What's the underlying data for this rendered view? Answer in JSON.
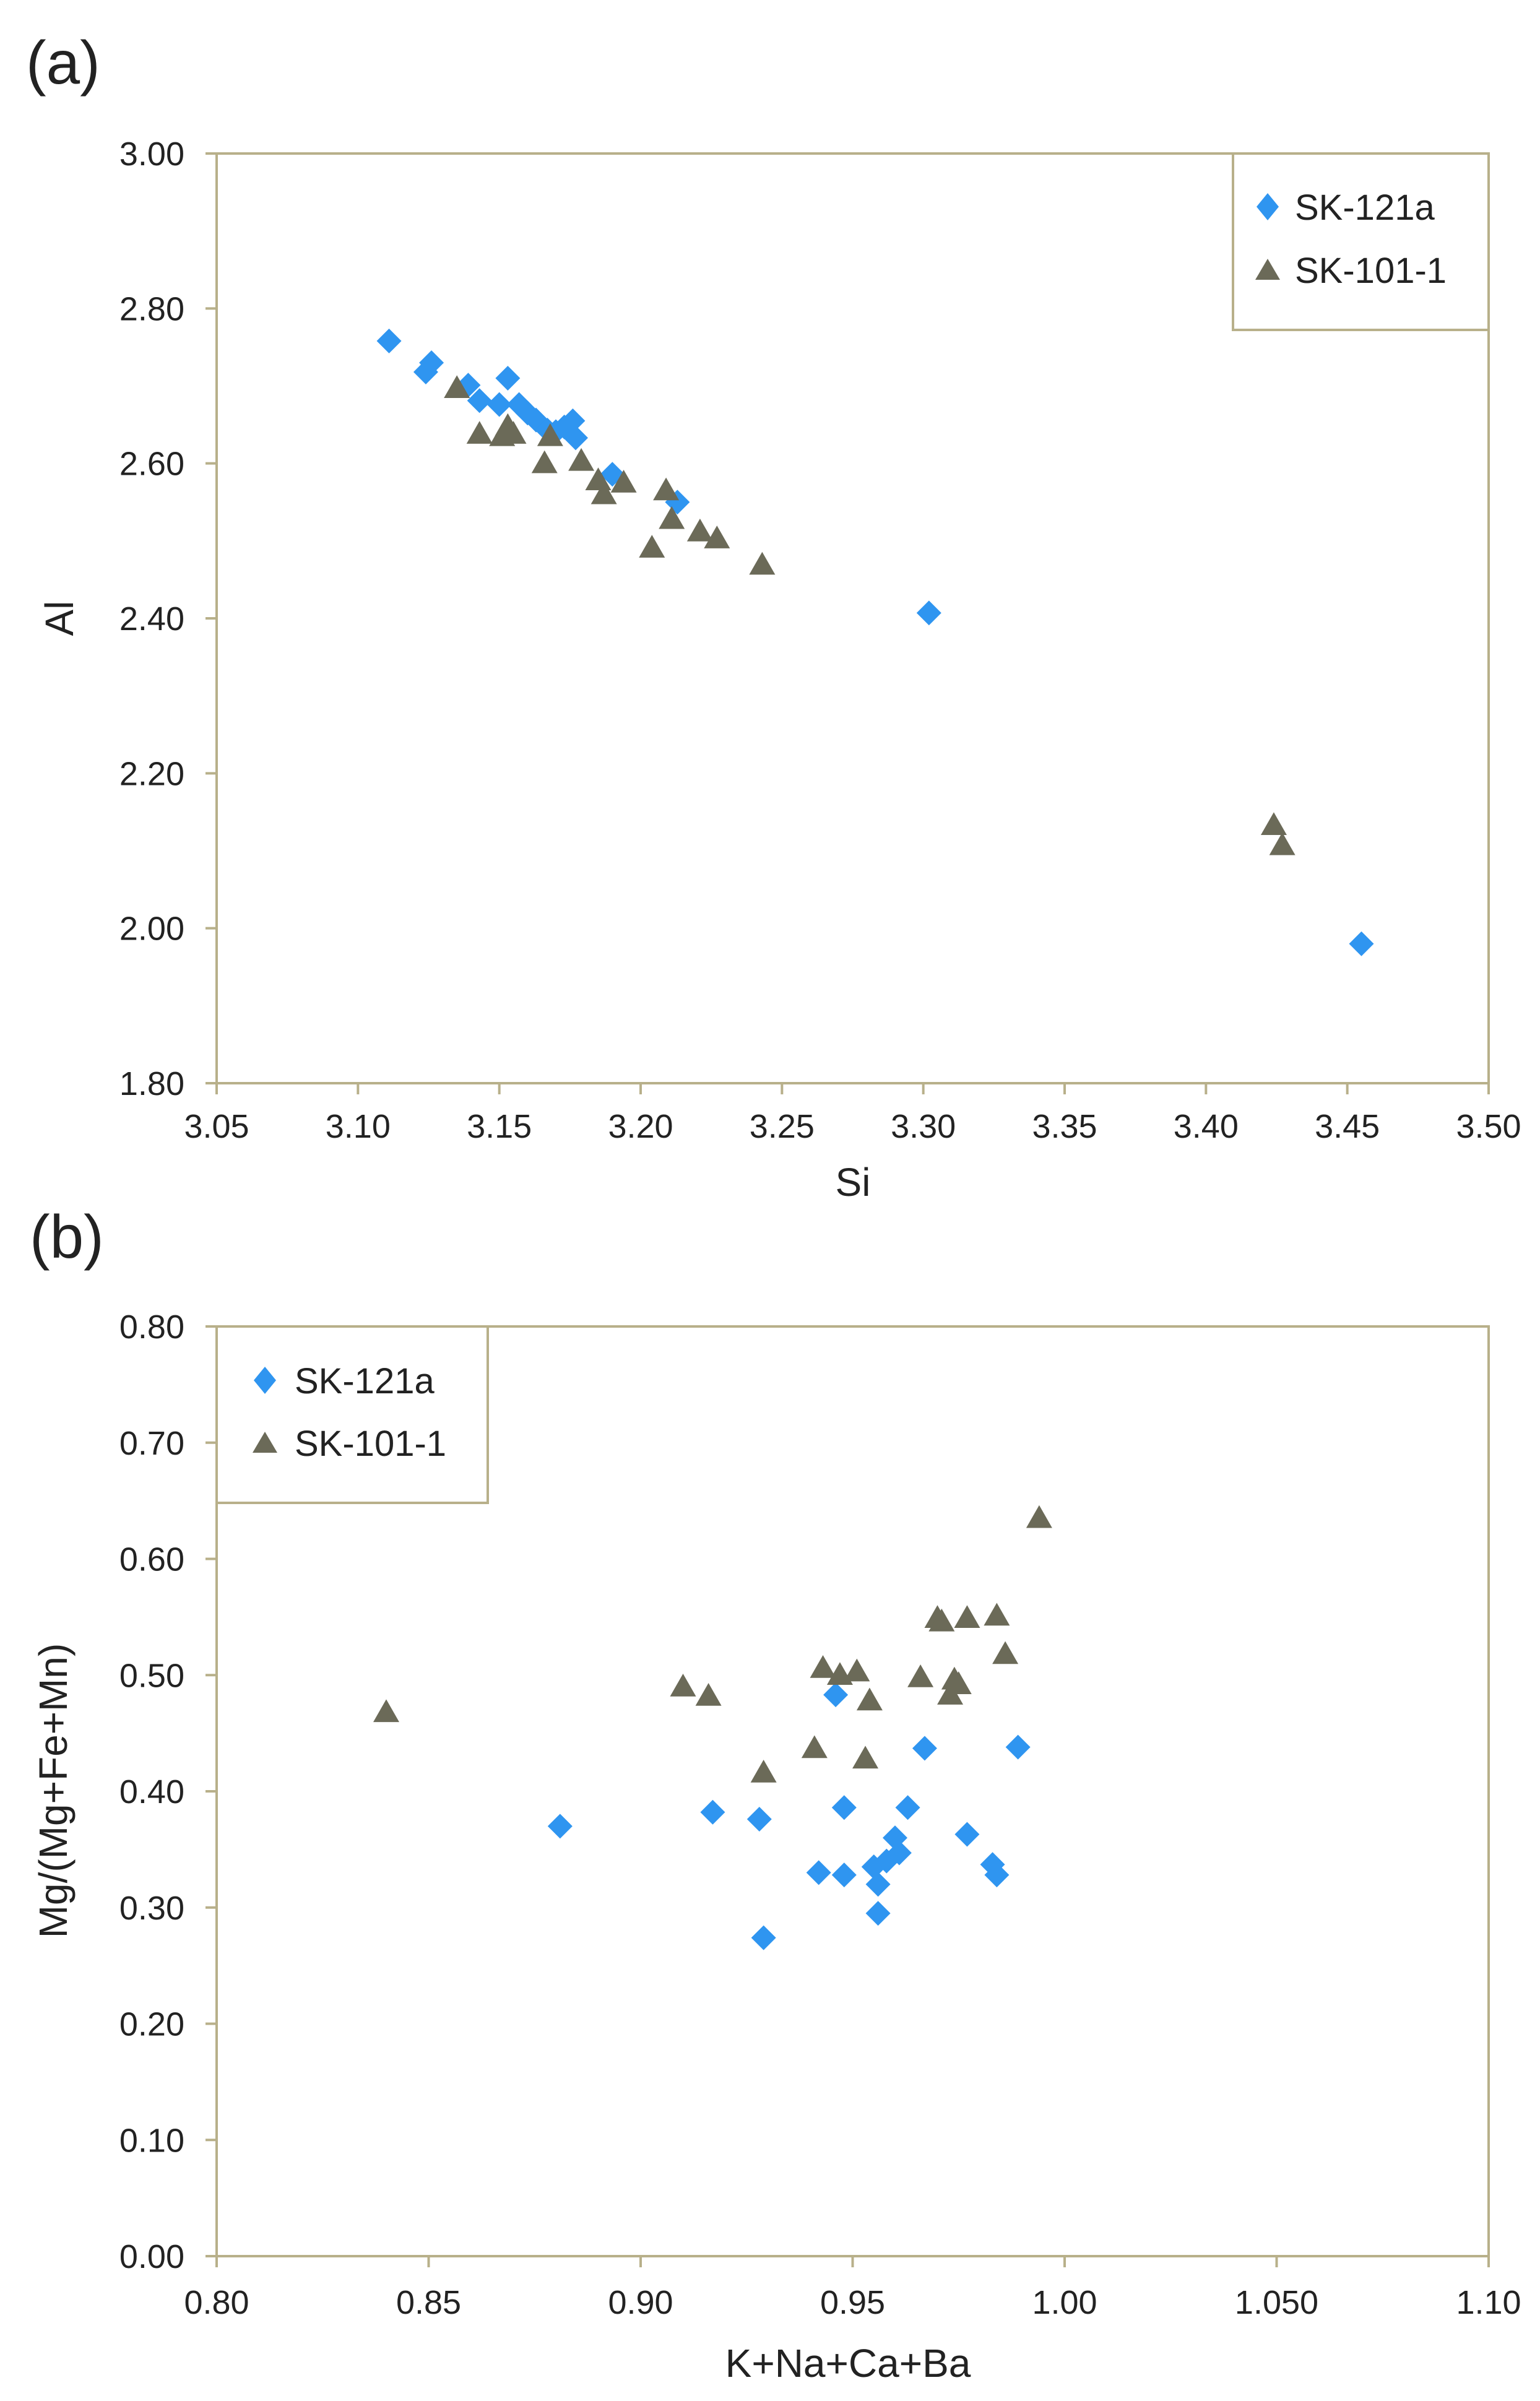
{
  "colors": {
    "series_a": "#2f95f0",
    "series_b": "#6b6a58",
    "frame": "#b8b08a",
    "text": "#222222"
  },
  "chart_data": [
    {
      "type": "scatter",
      "panel_label": "(a)",
      "title": "",
      "xlabel": "Si",
      "ylabel": "Al",
      "xlim": [
        3.05,
        3.5
      ],
      "ylim": [
        1.8,
        3.0
      ],
      "x_ticks": [
        "3.05",
        "3.10",
        "3.15",
        "3.20",
        "3.25",
        "3.30",
        "3.35",
        "3.40",
        "3.45",
        "3.50"
      ],
      "y_ticks": [
        "1.80",
        "2.00",
        "2.20",
        "2.40",
        "2.60",
        "2.80",
        "3.00"
      ],
      "grid": false,
      "legend_position": "top-right",
      "series": [
        {
          "name": "SK-121a",
          "marker": "diamond",
          "points": [
            [
              3.111,
              2.758
            ],
            [
              3.124,
              2.718
            ],
            [
              3.126,
              2.73
            ],
            [
              3.139,
              2.701
            ],
            [
              3.143,
              2.681
            ],
            [
              3.15,
              2.676
            ],
            [
              3.153,
              2.71
            ],
            [
              3.157,
              2.676
            ],
            [
              3.16,
              2.665
            ],
            [
              3.163,
              2.656
            ],
            [
              3.167,
              2.643
            ],
            [
              3.17,
              2.641
            ],
            [
              3.173,
              2.647
            ],
            [
              3.176,
              2.655
            ],
            [
              3.177,
              2.633
            ],
            [
              3.19,
              2.586
            ],
            [
              3.213,
              2.55
            ],
            [
              3.302,
              2.407
            ],
            [
              3.455,
              1.98
            ]
          ]
        },
        {
          "name": "SK-101-1",
          "marker": "triangle",
          "points": [
            [
              3.135,
              2.697
            ],
            [
              3.143,
              2.638
            ],
            [
              3.151,
              2.635
            ],
            [
              3.153,
              2.648
            ],
            [
              3.155,
              2.638
            ],
            [
              3.166,
              2.6
            ],
            [
              3.168,
              2.635
            ],
            [
              3.179,
              2.603
            ],
            [
              3.185,
              2.578
            ],
            [
              3.187,
              2.56
            ],
            [
              3.194,
              2.575
            ],
            [
              3.204,
              2.491
            ],
            [
              3.209,
              2.565
            ],
            [
              3.211,
              2.528
            ],
            [
              3.221,
              2.512
            ],
            [
              3.227,
              2.503
            ],
            [
              3.243,
              2.469
            ],
            [
              3.424,
              2.133
            ],
            [
              3.427,
              2.107
            ]
          ]
        }
      ]
    },
    {
      "type": "scatter",
      "panel_label": "(b)",
      "title": "",
      "xlabel": "K+Na+Ca+Ba",
      "ylabel": "Mg/(Mg+Fe+Mn)",
      "xlim": [
        0.8,
        1.1
      ],
      "ylim": [
        0.0,
        0.8
      ],
      "x_ticks": [
        "0.80",
        "0.85",
        "0.90",
        "0.95",
        "1.00",
        "1.050",
        "1.10"
      ],
      "y_ticks": [
        "0.00",
        "0.10",
        "0.20",
        "0.30",
        "0.40",
        "0.50",
        "0.60",
        "0.70",
        "0.80"
      ],
      "grid": false,
      "legend_position": "top-left",
      "series": [
        {
          "name": "SK-121a",
          "marker": "diamond",
          "points": [
            [
              0.881,
              0.37
            ],
            [
              0.917,
              0.382
            ],
            [
              0.928,
              0.376
            ],
            [
              0.929,
              0.274
            ],
            [
              0.942,
              0.33
            ],
            [
              0.946,
              0.483
            ],
            [
              0.948,
              0.386
            ],
            [
              0.948,
              0.328
            ],
            [
              0.955,
              0.335
            ],
            [
              0.956,
              0.32
            ],
            [
              0.956,
              0.295
            ],
            [
              0.958,
              0.34
            ],
            [
              0.96,
              0.36
            ],
            [
              0.961,
              0.347
            ],
            [
              0.963,
              0.386
            ],
            [
              0.967,
              0.437
            ],
            [
              0.977,
              0.363
            ],
            [
              0.983,
              0.337
            ],
            [
              0.984,
              0.328
            ],
            [
              0.989,
              0.438
            ]
          ]
        },
        {
          "name": "SK-101-1",
          "marker": "triangle",
          "points": [
            [
              0.84,
              0.468
            ],
            [
              0.91,
              0.49
            ],
            [
              0.916,
              0.482
            ],
            [
              0.929,
              0.416
            ],
            [
              0.941,
              0.437
            ],
            [
              0.943,
              0.506
            ],
            [
              0.947,
              0.5
            ],
            [
              0.951,
              0.503
            ],
            [
              0.953,
              0.428
            ],
            [
              0.954,
              0.478
            ],
            [
              0.966,
              0.498
            ],
            [
              0.97,
              0.549
            ],
            [
              0.971,
              0.546
            ],
            [
              0.973,
              0.483
            ],
            [
              0.974,
              0.496
            ],
            [
              0.975,
              0.492
            ],
            [
              0.977,
              0.549
            ],
            [
              0.984,
              0.551
            ],
            [
              0.986,
              0.518
            ],
            [
              0.994,
              0.635
            ]
          ]
        }
      ]
    }
  ]
}
